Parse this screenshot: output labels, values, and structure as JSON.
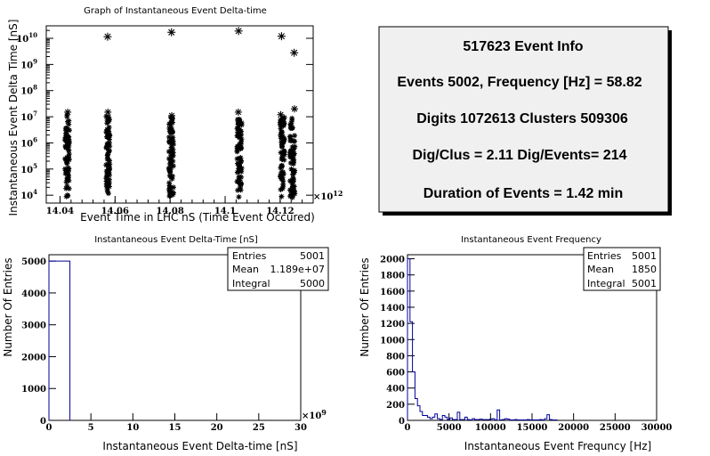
{
  "colors": {
    "line": "#000000",
    "hist": "#000099",
    "panel": "#f0f0f0"
  },
  "chart_data": [
    {
      "id": "scatter",
      "type": "scatter",
      "title": "Graph of Instantaneous Event Delta-time",
      "xlabel": "Event Time in LHC nS (Time Event Occured)",
      "ylabel": "Instantaneous Event Delta Time [nS]",
      "x_exponent": "×10",
      "x_exponent_power": "12",
      "xlim": [
        14.035,
        14.132
      ],
      "ylim": [
        5000,
        30000000000
      ],
      "yscale": "log",
      "x_ticks": [
        "14.04",
        "14.06",
        "14.08",
        "14.1",
        "14.12"
      ],
      "x_tick_values": [
        14.04,
        14.06,
        14.08,
        14.1,
        14.12
      ],
      "y_ticks": [
        "10",
        "10",
        "10",
        "10",
        "10",
        "10",
        "10"
      ],
      "y_tick_exponents": [
        "4",
        "5",
        "6",
        "7",
        "8",
        "9",
        "10"
      ],
      "y_tick_values": [
        10000,
        100000,
        1000000,
        10000000,
        100000000,
        1000000000,
        10000000000
      ],
      "marker": "*",
      "clusters": [
        {
          "x_center": 14.0426,
          "x_width": 0.0016,
          "y_low": 8000,
          "y_high": 12000000,
          "max_point": [
            14.0428,
            15000000
          ]
        },
        {
          "x_center": 14.0574,
          "x_width": 0.0013,
          "y_low": 9000,
          "y_high": 12000000,
          "max_point": [
            14.0574,
            15000000
          ]
        },
        {
          "x_center": 14.0804,
          "x_width": 0.0017,
          "y_low": 8000,
          "y_high": 10000000,
          "max_point": [
            14.0806,
            11000000
          ]
        },
        {
          "x_center": 14.1052,
          "x_width": 0.0017,
          "y_low": 8000,
          "y_high": 10000000,
          "max_point": [
            14.1048,
            15000000
          ]
        },
        {
          "x_center": 14.1208,
          "x_width": 0.0016,
          "y_low": 8000,
          "y_high": 10000000,
          "max_point": [
            14.1202,
            12000000
          ]
        },
        {
          "x_center": 14.1245,
          "x_width": 0.0019,
          "y_low": 8000,
          "y_high": 10000000,
          "max_point": [
            14.1252,
            20000000
          ]
        }
      ],
      "outliers": [
        {
          "x": 14.0573,
          "y": 11500000000
        },
        {
          "x": 14.0805,
          "y": 17000000000
        },
        {
          "x": 14.1049,
          "y": 19000000000
        },
        {
          "x": 14.1205,
          "y": 12000000000
        },
        {
          "x": 14.1251,
          "y": 2800000000
        }
      ]
    },
    {
      "id": "info",
      "type": "table",
      "lines": [
        "517623 Event Info",
        "Events 5002, Frequency [Hz] = 58.82",
        "Digits 1072613 Clusters 509306",
        "Dig/Clus = 2.11 Dig/Events= 214",
        "Duration of Events = 1.42 min"
      ]
    },
    {
      "id": "hist_dt",
      "type": "bar",
      "title": "Instantaneous Event Delta-Time [nS]",
      "xlabel": "Instantaneous Event Delta-time [nS]",
      "ylabel": "Number Of Entries",
      "x_exponent": "×10",
      "x_exponent_power": "9",
      "xlim": [
        0,
        30
      ],
      "ylim": [
        0,
        5200
      ],
      "x_ticks": [
        "0",
        "5",
        "10",
        "15",
        "20",
        "25",
        "30"
      ],
      "x_tick_values": [
        0,
        5,
        10,
        15,
        20,
        25,
        30
      ],
      "y_ticks": [
        "0",
        "1000",
        "2000",
        "3000",
        "4000",
        "5000"
      ],
      "y_tick_values": [
        0,
        1000,
        2000,
        3000,
        4000,
        5000
      ],
      "bins": [
        {
          "x0": 0,
          "x1": 2.5,
          "value": 5000
        }
      ],
      "stats": {
        "labels": [
          "Entries",
          "Mean",
          "Integral"
        ],
        "values": [
          "5001",
          "1.189e+07",
          "5000"
        ]
      }
    },
    {
      "id": "hist_freq",
      "type": "bar",
      "title": "Instantaneous Event Frequency",
      "xlabel": "Instantaneous Event Frequncy [Hz]",
      "ylabel": "Number Of Entries",
      "xlim": [
        0,
        30000
      ],
      "ylim": [
        0,
        2050
      ],
      "x_ticks": [
        "0",
        "5000",
        "10000",
        "15000",
        "20000",
        "25000",
        "30000"
      ],
      "x_tick_values": [
        0,
        5000,
        10000,
        15000,
        20000,
        25000,
        30000
      ],
      "y_ticks": [
        "0",
        "200",
        "400",
        "600",
        "800",
        "1000",
        "1200",
        "1400",
        "1600",
        "1800",
        "2000"
      ],
      "y_tick_values": [
        0,
        200,
        400,
        600,
        800,
        1000,
        1200,
        1400,
        1600,
        1800,
        2000
      ],
      "bin_width": 300,
      "bin_values": [
        2000,
        1220,
        600,
        270,
        180,
        110,
        60,
        60,
        40,
        20,
        40,
        80,
        20,
        10,
        60,
        40,
        10,
        30,
        10,
        10,
        100,
        10,
        10,
        40,
        10,
        5,
        20,
        10,
        10,
        15,
        10,
        10,
        10,
        15,
        20,
        5,
        130,
        5,
        10,
        20,
        15,
        5,
        5,
        10,
        5,
        5,
        5,
        5,
        10,
        5,
        5,
        5,
        5,
        10,
        5,
        20,
        70,
        10,
        5,
        5
      ],
      "stats": {
        "labels": [
          "Entries",
          "Mean",
          "Integral"
        ],
        "values": [
          "5001",
          "1850",
          "5001"
        ]
      }
    }
  ]
}
